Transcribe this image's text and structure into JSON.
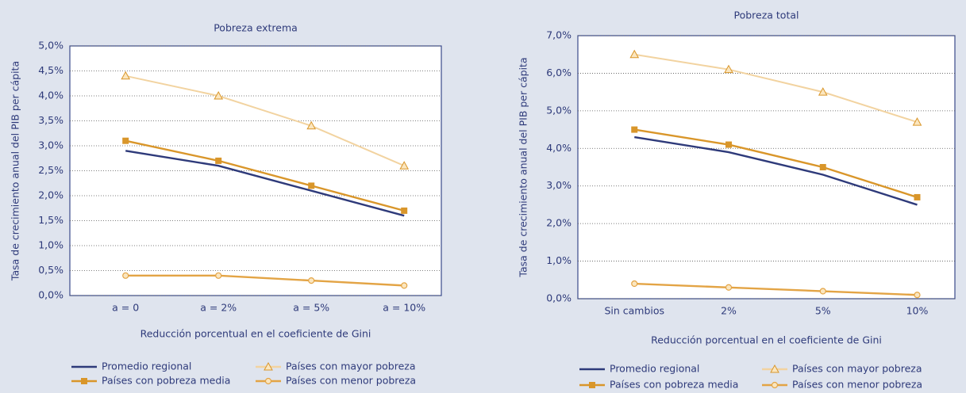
{
  "chart_data": [
    {
      "type": "line",
      "title": "Pobreza extrema",
      "y_label": "Tasa de crecimiento anual del PIB per cápita",
      "x_label": "Reducción porcentual en el coeficiente de Gini",
      "categories": [
        "a = 0",
        "a = 2%",
        "a = 5%",
        "a = 10%"
      ],
      "ylim": [
        0,
        5
      ],
      "grid": true,
      "yticks": [
        {
          "value": 0,
          "label": "0,0%"
        },
        {
          "value": 0.5,
          "label": "0,5%"
        },
        {
          "value": 1,
          "label": "1,0%"
        },
        {
          "value": 1.5,
          "label": "1,5%"
        },
        {
          "value": 2,
          "label": "2,0%"
        },
        {
          "value": 2.5,
          "label": "2,5%"
        },
        {
          "value": 3,
          "label": "3,0%"
        },
        {
          "value": 3.5,
          "label": "3,5%"
        },
        {
          "value": 4,
          "label": "4,0%"
        },
        {
          "value": 4.5,
          "label": "4,5%"
        },
        {
          "value": 5,
          "label": "5,0%"
        }
      ],
      "series": [
        {
          "name": "Promedio regional",
          "color": "#2e3a7a",
          "marker": "none",
          "values": [
            2.9,
            2.6,
            2.1,
            1.6
          ]
        },
        {
          "name": "Países con mayor pobreza",
          "color": "#f2d3a0",
          "marker": "triangle",
          "values": [
            4.4,
            4.0,
            3.4,
            2.6
          ]
        },
        {
          "name": "Países con pobreza media",
          "color": "#d9962a",
          "marker": "square",
          "values": [
            3.1,
            2.7,
            2.2,
            1.7
          ]
        },
        {
          "name": "Países con menor pobreza",
          "color": "#e3a445",
          "marker": "circle",
          "values": [
            0.4,
            0.4,
            0.3,
            0.2
          ]
        }
      ]
    },
    {
      "type": "line",
      "title": "Pobreza total",
      "y_label": "Tasa de crecimiento anual del PIB per cápita",
      "x_label": "Reducción porcentual en el coeficiente de Gini",
      "categories": [
        "Sin cambios",
        "2%",
        "5%",
        "10%"
      ],
      "ylim": [
        0,
        7
      ],
      "grid": true,
      "yticks": [
        {
          "value": 0,
          "label": "0,0%"
        },
        {
          "value": 1,
          "label": "1,0%"
        },
        {
          "value": 2,
          "label": "2,0%"
        },
        {
          "value": 3,
          "label": "3,0%"
        },
        {
          "value": 4,
          "label": "4,0%"
        },
        {
          "value": 5,
          "label": "5,0%"
        },
        {
          "value": 6,
          "label": "6,0%"
        },
        {
          "value": 7,
          "label": "7,0%"
        }
      ],
      "series": [
        {
          "name": "Promedio regional",
          "color": "#2e3a7a",
          "marker": "none",
          "values": [
            4.3,
            3.9,
            3.3,
            2.5
          ]
        },
        {
          "name": "Países con mayor pobreza",
          "color": "#f2d3a0",
          "marker": "triangle",
          "values": [
            6.5,
            6.1,
            5.5,
            4.7
          ]
        },
        {
          "name": "Países con pobreza media",
          "color": "#d9962a",
          "marker": "square",
          "values": [
            4.5,
            4.1,
            3.5,
            2.7
          ]
        },
        {
          "name": "Países con menor pobreza",
          "color": "#e3a445",
          "marker": "circle",
          "values": [
            0.4,
            0.3,
            0.2,
            0.1
          ]
        }
      ]
    }
  ]
}
